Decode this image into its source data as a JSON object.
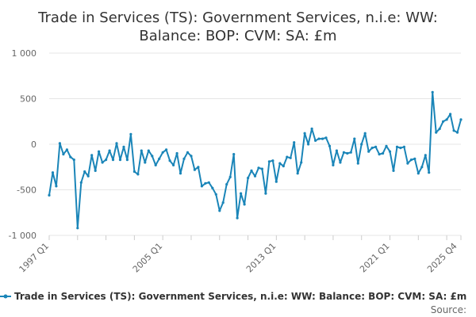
{
  "colors": {
    "series": "#1a85b8",
    "grid": "#e6e6e6",
    "axis": "#cccccc",
    "text": "#333333",
    "tick_text": "#666666"
  },
  "source_label": "Source:",
  "chart_data": {
    "type": "line",
    "title": "Trade in Services (TS): Government Services, n.i.e: WW: Balance: BOP: CVM: SA: £m",
    "title_lines": [
      "Trade in Services (TS): Government Services, n.i.e: WW:",
      "Balance: BOP: CVM: SA: £m"
    ],
    "xlabel": "",
    "ylabel": "",
    "ylim": [
      -1000,
      1000
    ],
    "yticks": [
      {
        "value": 1000,
        "label": "1 000"
      },
      {
        "value": 500,
        "label": "500"
      },
      {
        "value": 0,
        "label": "0"
      },
      {
        "value": -500,
        "label": "-500"
      },
      {
        "value": -1000,
        "label": "-1 000"
      }
    ],
    "x_start": "1997 Q1",
    "x_end": "2025 Q4",
    "xticks": [
      {
        "index": 0,
        "label": "1997 Q1"
      },
      {
        "index": 32,
        "label": "2005 Q1"
      },
      {
        "index": 64,
        "label": "2013 Q1"
      },
      {
        "index": 96,
        "label": "2021 Q1"
      },
      {
        "index": 115,
        "label": "2025 Q4"
      }
    ],
    "grid": true,
    "legend_position": "bottom",
    "series": [
      {
        "name": "Trade in Services (TS): Government Services, n.i.e: WW: Balance: BOP: CVM: SA: £m",
        "values": [
          -560,
          -310,
          -460,
          10,
          -110,
          -60,
          -140,
          -170,
          -920,
          -420,
          -300,
          -350,
          -120,
          -290,
          -80,
          -200,
          -170,
          -70,
          -170,
          10,
          -170,
          -30,
          -170,
          110,
          -300,
          -330,
          -70,
          -200,
          -70,
          -130,
          -230,
          -160,
          -90,
          -60,
          -180,
          -230,
          -100,
          -320,
          -160,
          -90,
          -130,
          -280,
          -250,
          -460,
          -430,
          -420,
          -480,
          -550,
          -730,
          -640,
          -440,
          -360,
          -110,
          -810,
          -540,
          -660,
          -370,
          -290,
          -350,
          -260,
          -270,
          -540,
          -190,
          -180,
          -410,
          -210,
          -240,
          -140,
          -150,
          20,
          -320,
          -200,
          120,
          0,
          170,
          40,
          60,
          60,
          70,
          -20,
          -230,
          -70,
          -200,
          -90,
          -100,
          -90,
          60,
          -210,
          0,
          120,
          -80,
          -40,
          -30,
          -110,
          -100,
          -20,
          -80,
          -290,
          -30,
          -40,
          -30,
          -210,
          -170,
          -160,
          -320,
          -250,
          -120,
          -310,
          570,
          130,
          170,
          250,
          270,
          330,
          150,
          130,
          270
        ]
      }
    ]
  }
}
